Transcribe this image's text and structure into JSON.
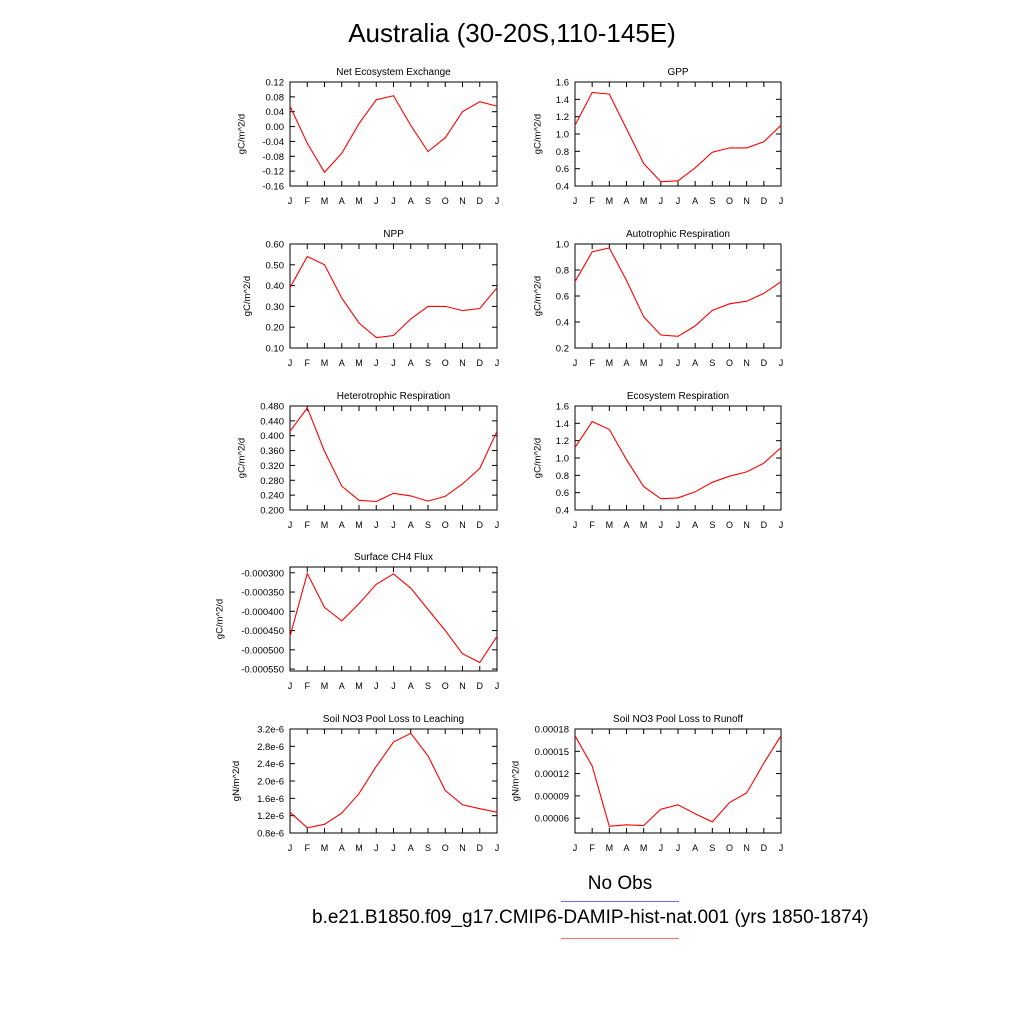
{
  "title": "Australia (30-20S,110-145E)",
  "colors": {
    "model": "#ff0000",
    "obs": "#0000ff"
  },
  "legend": {
    "obs_label": "No Obs",
    "model_label": "b.e21.B1850.f09_g17.CMIP6-DAMIP-hist-nat.001 (yrs 1850-1874)"
  },
  "chart_data": [
    {
      "type": "line",
      "title": "Net Ecosystem Exchange",
      "ylabel": "gC/m^2/d",
      "categories": [
        "J",
        "F",
        "M",
        "A",
        "M",
        "J",
        "J",
        "A",
        "S",
        "O",
        "N",
        "D",
        "J"
      ],
      "ylim": [
        -0.16,
        0.12
      ],
      "yticks": [
        "0.12",
        "0.08",
        "0.04",
        "0.00",
        "-0.04",
        "-0.08",
        "-0.12",
        "-0.16"
      ],
      "values": [
        0.055,
        -0.045,
        -0.123,
        -0.072,
        0.008,
        0.072,
        0.083,
        0.003,
        -0.067,
        -0.03,
        0.04,
        0.067,
        0.055
      ]
    },
    {
      "type": "line",
      "title": "GPP",
      "ylabel": "gC/m^2/d",
      "categories": [
        "J",
        "F",
        "M",
        "A",
        "M",
        "J",
        "J",
        "A",
        "S",
        "O",
        "N",
        "D",
        "J"
      ],
      "ylim": [
        0.4,
        1.6
      ],
      "yticks": [
        "1.6",
        "1.4",
        "1.2",
        "1.0",
        "0.8",
        "0.6",
        "0.4"
      ],
      "values": [
        1.1,
        1.48,
        1.46,
        1.06,
        0.66,
        0.45,
        0.46,
        0.61,
        0.79,
        0.84,
        0.84,
        0.91,
        1.1
      ]
    },
    {
      "type": "line",
      "title": "NPP",
      "ylabel": "gC/m^2/d",
      "categories": [
        "J",
        "F",
        "M",
        "A",
        "M",
        "J",
        "J",
        "A",
        "S",
        "O",
        "N",
        "D",
        "J"
      ],
      "ylim": [
        0.1,
        0.6
      ],
      "yticks": [
        "0.60",
        "0.50",
        "0.40",
        "0.30",
        "0.20",
        "0.10"
      ],
      "values": [
        0.39,
        0.54,
        0.5,
        0.34,
        0.22,
        0.15,
        0.16,
        0.24,
        0.3,
        0.3,
        0.28,
        0.29,
        0.39
      ]
    },
    {
      "type": "line",
      "title": "Autotrophic Respiration",
      "ylabel": "gC/m^2/d",
      "categories": [
        "J",
        "F",
        "M",
        "A",
        "M",
        "J",
        "J",
        "A",
        "S",
        "O",
        "N",
        "D",
        "J"
      ],
      "ylim": [
        0.2,
        1.0
      ],
      "yticks": [
        "1.0",
        "0.8",
        "0.6",
        "0.4",
        "0.2"
      ],
      "values": [
        0.71,
        0.94,
        0.97,
        0.72,
        0.44,
        0.3,
        0.29,
        0.37,
        0.49,
        0.54,
        0.56,
        0.62,
        0.71
      ]
    },
    {
      "type": "line",
      "title": "Heterotrophic Respiration",
      "ylabel": "gC/m^2/d",
      "categories": [
        "J",
        "F",
        "M",
        "A",
        "M",
        "J",
        "J",
        "A",
        "S",
        "O",
        "N",
        "D",
        "J"
      ],
      "ylim": [
        0.2,
        0.48
      ],
      "yticks": [
        "0.480",
        "0.440",
        "0.400",
        "0.360",
        "0.320",
        "0.280",
        "0.240",
        "0.200"
      ],
      "values": [
        0.412,
        0.475,
        0.358,
        0.264,
        0.226,
        0.223,
        0.245,
        0.238,
        0.224,
        0.237,
        0.27,
        0.312,
        0.412
      ]
    },
    {
      "type": "line",
      "title": "Ecosystem Respiration",
      "ylabel": "gC/m^2/d",
      "categories": [
        "J",
        "F",
        "M",
        "A",
        "M",
        "J",
        "J",
        "A",
        "S",
        "O",
        "N",
        "D",
        "J"
      ],
      "ylim": [
        0.4,
        1.6
      ],
      "yticks": [
        "1.6",
        "1.4",
        "1.2",
        "1.0",
        "0.8",
        "0.6",
        "0.4"
      ],
      "values": [
        1.12,
        1.42,
        1.33,
        0.98,
        0.67,
        0.53,
        0.54,
        0.61,
        0.72,
        0.79,
        0.84,
        0.94,
        1.12
      ]
    },
    {
      "type": "line",
      "title": "Surface CH4 Flux",
      "ylabel": "gC/m^2/d",
      "categories": [
        "J",
        "F",
        "M",
        "A",
        "M",
        "J",
        "J",
        "A",
        "S",
        "O",
        "N",
        "D",
        "J"
      ],
      "ylim": [
        -0.000555,
        -0.000285
      ],
      "yticks": [
        "-0.000300",
        "-0.000350",
        "-0.000400",
        "-0.000450",
        "-0.000500",
        "-0.000550"
      ],
      "values": [
        -0.000465,
        -0.000302,
        -0.00039,
        -0.000425,
        -0.00038,
        -0.00033,
        -0.000303,
        -0.00034,
        -0.000395,
        -0.00045,
        -0.00051,
        -0.000533,
        -0.000465
      ]
    },
    {
      "type": "line",
      "title": "Soil NO3 Pool Loss to Leaching",
      "ylabel": "gN/m^2/d",
      "categories": [
        "J",
        "F",
        "M",
        "A",
        "M",
        "J",
        "J",
        "A",
        "S",
        "O",
        "N",
        "D",
        "J"
      ],
      "ylim": [
        8e-07,
        3.2e-06
      ],
      "yticks": [
        "3.2e-6",
        "2.8e-6",
        "2.4e-6",
        "2.0e-6",
        "1.6e-6",
        "1.2e-6",
        "0.8e-6"
      ],
      "values": [
        1.28e-06,
        9.2e-07,
        1e-06,
        1.26e-06,
        1.71e-06,
        2.34e-06,
        2.9e-06,
        3.1e-06,
        2.58e-06,
        1.78e-06,
        1.45e-06,
        1.36e-06,
        1.28e-06
      ]
    },
    {
      "type": "line",
      "title": "Soil NO3 Pool Loss to Runoff",
      "ylabel": "gN/m^2/d",
      "categories": [
        "J",
        "F",
        "M",
        "A",
        "M",
        "J",
        "J",
        "A",
        "S",
        "O",
        "N",
        "D",
        "J"
      ],
      "ylim": [
        4e-05,
        0.00018
      ],
      "yticks": [
        "0.00018",
        "0.00015",
        "0.00012",
        "0.00009",
        "0.00006"
      ],
      "values": [
        0.000171,
        0.00013,
        4.9e-05,
        5.1e-05,
        5e-05,
        7.2e-05,
        7.8e-05,
        6.6e-05,
        5.5e-05,
        8.1e-05,
        9.4e-05,
        0.000134,
        0.000171
      ]
    }
  ]
}
